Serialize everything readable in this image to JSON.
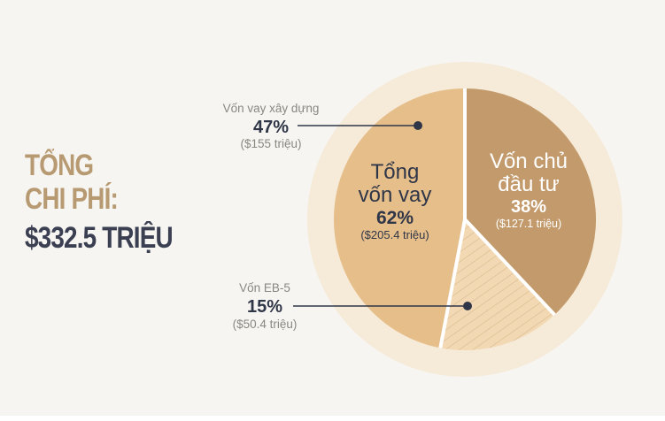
{
  "summary": {
    "line1": "TỔNG",
    "line2": "CHI PHÍ:",
    "line3": "$332.5 TRIỆU"
  },
  "chart_data": {
    "type": "pie",
    "title": "",
    "slices": [
      {
        "name": "Vốn chủ đầu tư",
        "percent": 38,
        "amount": "($127.1 triệu)",
        "color": "#c39a6b"
      },
      {
        "name": "Vốn vay xây dựng",
        "percent": 47,
        "amount": "($155 triệu)",
        "color": "#e6be8a"
      },
      {
        "name": "Vốn EB-5",
        "percent": 15,
        "amount": "($50.4 triệu)",
        "color": "#f2d9b4",
        "pattern": "diagonal-stripes"
      }
    ],
    "group": {
      "name_line1": "Tổng",
      "name_line2": "vốn vay",
      "percent": 62,
      "amount": "($205.4 triệu)"
    },
    "labels": {
      "equity": {
        "line1": "Vốn chủ",
        "line2": "đầu tư",
        "percent": "38%",
        "amount": "($127.1 triệu)"
      },
      "construction": {
        "name": "Vốn vay xây dựng",
        "percent": "47%",
        "amount": "($155 triệu)"
      },
      "eb5": {
        "name": "Vốn EB-5",
        "percent": "15%",
        "amount": "($50.4 triệu)"
      }
    },
    "ring_color": "#f6ead8",
    "dark_color": "#2f3648",
    "muted_color": "#8a8780"
  }
}
